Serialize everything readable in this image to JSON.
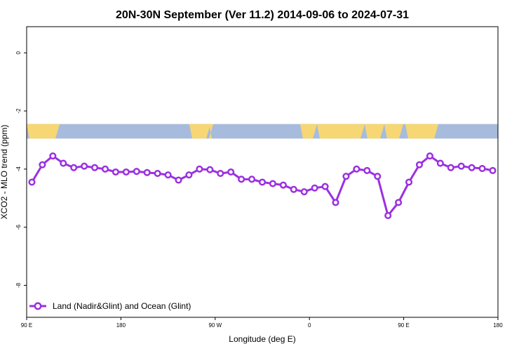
{
  "colors": {
    "series": "#9b30e0",
    "land": "#f7d774",
    "ocean": "#a7bcdc",
    "axis": "#000000"
  },
  "chart_data": {
    "type": "line",
    "title": "20N-30N September (Ver 11.2)   2014-09-06 to 2024-07-31",
    "xlabel": "Longitude (deg E)",
    "ylabel": "XCO2 - MLO trend (ppm)",
    "xlim": [
      90,
      540
    ],
    "ylim": [
      -9.1,
      0.9
    ],
    "xticks": [
      {
        "value": 90,
        "label": "90 E"
      },
      {
        "value": 180,
        "label": "180"
      },
      {
        "value": 270,
        "label": "90 W"
      },
      {
        "value": 360,
        "label": "0"
      },
      {
        "value": 450,
        "label": "90 E"
      },
      {
        "value": 540,
        "label": "180"
      }
    ],
    "yticks": [
      {
        "value": 0,
        "label": "0"
      },
      {
        "value": -2,
        "label": "-2"
      },
      {
        "value": -4,
        "label": "-4"
      },
      {
        "value": -6,
        "label": "-6"
      },
      {
        "value": -8,
        "label": "-8"
      }
    ],
    "legend_position": "bottom-left",
    "series": [
      {
        "name": "Land (Nadir&Glint) and Ocean (Glint)",
        "x": [
          95,
          105,
          115,
          125,
          135,
          145,
          155,
          165,
          175,
          185,
          195,
          205,
          215,
          225,
          235,
          245,
          255,
          265,
          275,
          285,
          295,
          305,
          315,
          325,
          335,
          345,
          355,
          365,
          375,
          385,
          395,
          405,
          415,
          425,
          435,
          445,
          455,
          465,
          475,
          485,
          495,
          505,
          515,
          525,
          535
        ],
        "y": [
          -4.45,
          -3.85,
          -3.55,
          -3.8,
          -3.95,
          -3.9,
          -3.95,
          -4.0,
          -4.1,
          -4.1,
          -4.08,
          -4.12,
          -4.15,
          -4.2,
          -4.38,
          -4.2,
          -4.0,
          -4.02,
          -4.15,
          -4.1,
          -4.35,
          -4.35,
          -4.45,
          -4.5,
          -4.55,
          -4.7,
          -4.78,
          -4.65,
          -4.6,
          -5.15,
          -4.25,
          -4.0,
          -4.05,
          -4.25,
          -5.6,
          -5.15,
          -4.45,
          -3.85,
          -3.55,
          -3.8,
          -3.95,
          -3.9,
          -3.95,
          -3.98,
          -4.05
        ]
      }
    ],
    "map_band": {
      "y_top": -2.45,
      "y_bottom": -2.95
    }
  }
}
